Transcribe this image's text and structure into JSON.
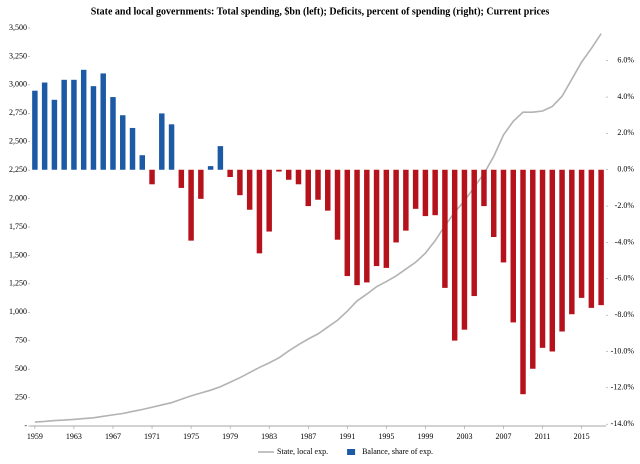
{
  "chart_data": {
    "type": "combo",
    "title": "State and local governments: Total spending, $bn (left); Deficits, percent of spending (right); Current prices",
    "x": [
      1959,
      1960,
      1961,
      1962,
      1963,
      1964,
      1965,
      1966,
      1967,
      1968,
      1969,
      1970,
      1971,
      1972,
      1973,
      1974,
      1975,
      1976,
      1977,
      1978,
      1979,
      1980,
      1981,
      1982,
      1983,
      1984,
      1985,
      1986,
      1987,
      1988,
      1989,
      1990,
      1991,
      1992,
      1993,
      1994,
      1995,
      1996,
      1997,
      1998,
      1999,
      2000,
      2001,
      2002,
      2003,
      2004,
      2005,
      2006,
      2007,
      2008,
      2009,
      2010,
      2011,
      2012,
      2013,
      2014,
      2015,
      2016,
      2017
    ],
    "xlim": [
      1958.5,
      2017.5
    ],
    "xticks": [
      1959,
      1963,
      1967,
      1971,
      1975,
      1979,
      1983,
      1987,
      1991,
      1995,
      1999,
      2003,
      2007,
      2011,
      2015
    ],
    "ylim": [
      0,
      3500
    ],
    "yticks": [
      {
        "value": 0,
        "label": "-"
      },
      {
        "value": 250,
        "label": "250"
      },
      {
        "value": 500,
        "label": "500"
      },
      {
        "value": 750,
        "label": "750"
      },
      {
        "value": 1000,
        "label": "1,000"
      },
      {
        "value": 1250,
        "label": "1,250"
      },
      {
        "value": 1500,
        "label": "1,500"
      },
      {
        "value": 1750,
        "label": "1,750"
      },
      {
        "value": 2000,
        "label": "2,000"
      },
      {
        "value": 2250,
        "label": "2,250"
      },
      {
        "value": 2500,
        "label": "2,500"
      },
      {
        "value": 2750,
        "label": "2,750"
      },
      {
        "value": 3000,
        "label": "3,000"
      },
      {
        "value": 3250,
        "label": "3,250"
      },
      {
        "value": 3500,
        "label": "3,500"
      }
    ],
    "y2lim": [
      -14.1,
      7.8
    ],
    "y2ticks": [
      {
        "value": -14,
        "label": "-14.0%"
      },
      {
        "value": -12,
        "label": "-12.0%"
      },
      {
        "value": -10,
        "label": "-10.0%"
      },
      {
        "value": -8,
        "label": "-8.0%"
      },
      {
        "value": -6,
        "label": "-6.0%"
      },
      {
        "value": -4,
        "label": "-4.0%"
      },
      {
        "value": -2,
        "label": "-2.0%"
      },
      {
        "value": 0,
        "label": "0.0%"
      },
      {
        "value": 2,
        "label": "2.0%"
      },
      {
        "value": 4,
        "label": "4.0%"
      },
      {
        "value": 6,
        "label": "6.0%"
      }
    ],
    "series": [
      {
        "name": "State, local exp.",
        "type": "line",
        "axis": "y",
        "color": "#b3b3b3",
        "values": [
          35,
          40,
          48,
          52,
          58,
          65,
          72,
          85,
          98,
          110,
          128,
          145,
          165,
          185,
          205,
          235,
          265,
          290,
          315,
          345,
          385,
          425,
          470,
          515,
          555,
          600,
          660,
          715,
          765,
          810,
          870,
          930,
          1010,
          1100,
          1160,
          1225,
          1270,
          1320,
          1380,
          1440,
          1520,
          1630,
          1760,
          1880,
          1980,
          2100,
          2220,
          2370,
          2560,
          2680,
          2760,
          2760,
          2770,
          2810,
          2900,
          3050,
          3200,
          3320,
          3450
        ]
      },
      {
        "name": "Balance, share of exp.",
        "type": "bar",
        "axis": "y2",
        "color": "#1c5aa6",
        "negative_color": "#b5121b",
        "values": [
          4.35,
          4.8,
          3.85,
          4.95,
          4.95,
          5.5,
          4.6,
          5.3,
          4.0,
          3.0,
          2.3,
          0.8,
          -0.8,
          3.1,
          2.5,
          -1.0,
          -3.9,
          -1.6,
          0.2,
          1.3,
          -0.4,
          -1.4,
          -2.2,
          -4.6,
          -3.4,
          -0.1,
          -0.55,
          -0.8,
          -2.0,
          -1.65,
          -2.25,
          -3.85,
          -5.85,
          -6.35,
          -6.2,
          -5.3,
          -5.4,
          -4.0,
          -3.35,
          -2.15,
          -2.55,
          -2.5,
          -6.5,
          -9.4,
          -8.8,
          -6.95,
          -2.0,
          -3.7,
          -5.1,
          -8.4,
          -12.35,
          -10.95,
          -9.8,
          -10.0,
          -8.9,
          -7.95,
          -7.05,
          -7.6,
          -7.45
        ]
      }
    ]
  }
}
